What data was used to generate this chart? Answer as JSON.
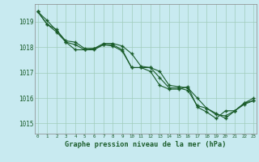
{
  "title": "Graphe pression niveau de la mer (hPa)",
  "bg_color": "#c8eaf0",
  "plot_bg_color": "#c8eaf0",
  "grid_color": "#a0ccbb",
  "line_color": "#1a5c2a",
  "ylim": [
    1014.6,
    1019.7
  ],
  "xlim": [
    -0.3,
    23.3
  ],
  "yticks": [
    1015,
    1016,
    1017,
    1018,
    1019
  ],
  "xticks": [
    0,
    1,
    2,
    3,
    4,
    5,
    6,
    7,
    8,
    9,
    10,
    11,
    12,
    13,
    14,
    15,
    16,
    17,
    18,
    19,
    20,
    21,
    22,
    23
  ],
  "line1": [
    1019.4,
    1018.9,
    1018.7,
    1018.2,
    1017.9,
    1017.9,
    1017.9,
    1018.1,
    1018.1,
    1017.9,
    1017.2,
    1017.2,
    1017.2,
    1016.8,
    1016.4,
    1016.4,
    1016.3,
    1015.7,
    1015.6,
    1015.35,
    1015.3,
    1015.5,
    1015.75,
    1015.9
  ],
  "line2": [
    1019.4,
    1018.9,
    1018.6,
    1018.2,
    1018.1,
    1017.9,
    1017.95,
    1018.1,
    1018.05,
    1017.85,
    1017.2,
    1017.2,
    1017.05,
    1016.5,
    1016.35,
    1016.35,
    1016.45,
    1015.65,
    1015.45,
    1015.2,
    1015.5,
    1015.5,
    1015.8,
    1015.9
  ],
  "line3": [
    1019.4,
    1019.05,
    1018.65,
    1018.25,
    1018.2,
    1017.95,
    1017.95,
    1018.15,
    1018.15,
    1018.05,
    1017.75,
    1017.25,
    1017.2,
    1017.05,
    1016.5,
    1016.45,
    1016.4,
    1016.0,
    1015.6,
    1015.4,
    1015.2,
    1015.5,
    1015.8,
    1016.0
  ]
}
